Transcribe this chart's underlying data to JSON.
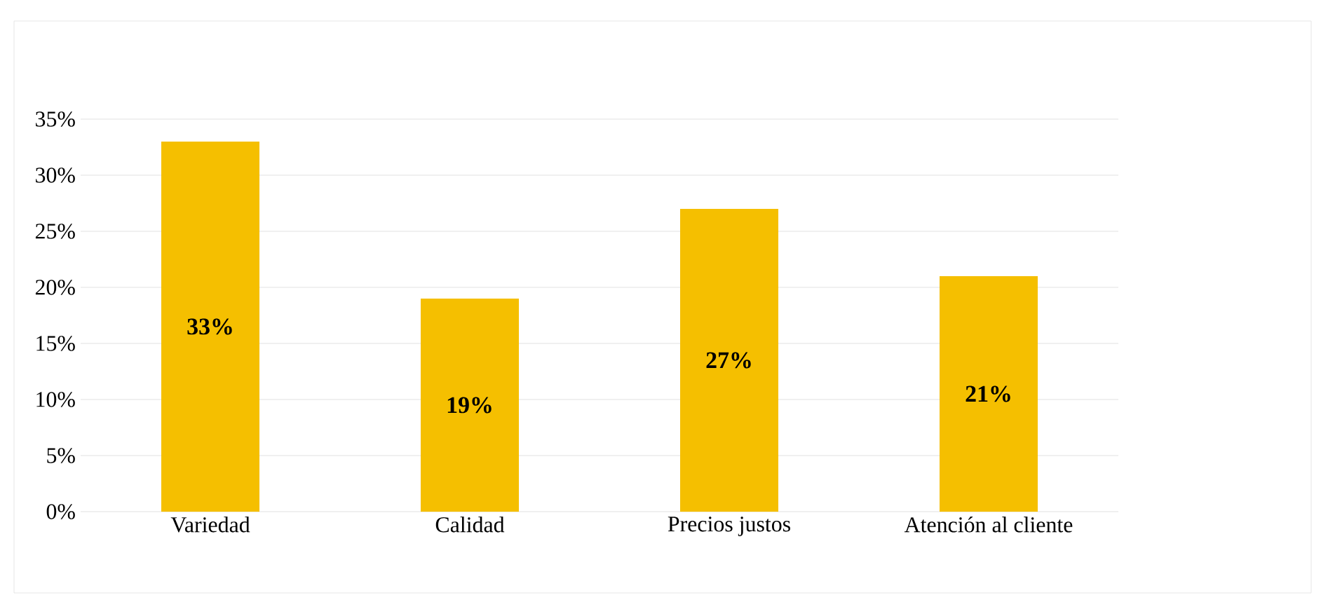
{
  "chart_data": {
    "type": "bar",
    "categories": [
      "Variedad",
      "Calidad",
      "Precios justos",
      "Atención al cliente"
    ],
    "values": [
      33,
      19,
      27,
      21
    ],
    "value_labels": [
      "33%",
      "19%",
      "27%",
      "21%"
    ],
    "color": "#f5bf00",
    "ylim": [
      0,
      35
    ],
    "yticks": [
      {
        "value": 0,
        "label": "0%"
      },
      {
        "value": 5,
        "label": "5%"
      },
      {
        "value": 10,
        "label": "10%"
      },
      {
        "value": 15,
        "label": "15%"
      },
      {
        "value": 20,
        "label": "20%"
      },
      {
        "value": 25,
        "label": "25%"
      },
      {
        "value": 30,
        "label": "30%"
      },
      {
        "value": 35,
        "label": "35%"
      }
    ],
    "grid": "y"
  }
}
